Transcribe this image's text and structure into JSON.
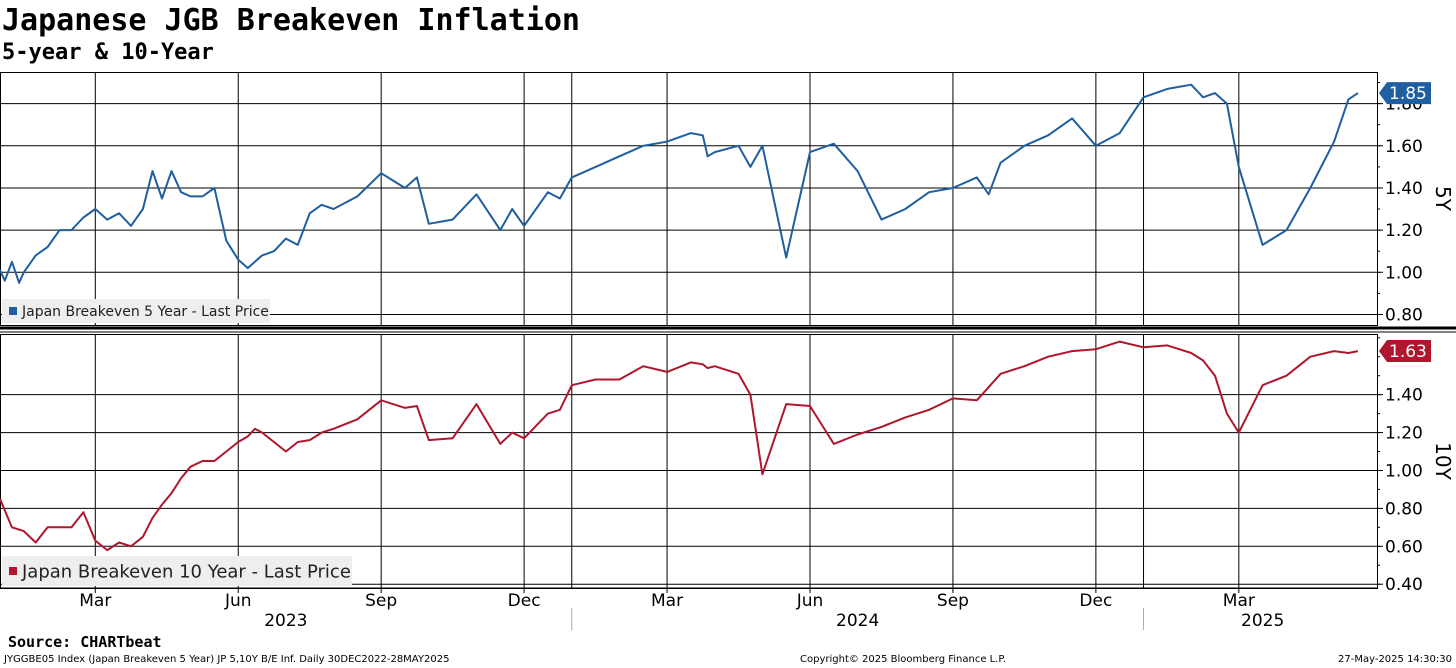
{
  "title": "Japanese JGB Breakeven Inflation",
  "subtitle": "5-year & 10-Year",
  "source": "Source: CHARTbeat",
  "footer": {
    "left": "JYGGBE05 Index (Japan Breakeven 5 Year) JP 5,10Y B/E Inf.  Daily 30DEC2022-28MAY2025",
    "center": "Copyright© 2025 Bloomberg Finance L.P.",
    "right": "27-May-2025 14:30:30"
  },
  "colors": {
    "five_year": "#1f5fa0",
    "ten_year": "#b0172e"
  },
  "chart_data": [
    {
      "type": "line",
      "panel": "top",
      "axis_label": "5Y",
      "series_name": "Japan Breakeven 5 Year - Last Price",
      "last_value_label": "1.85",
      "last_value": 1.85,
      "ylim": [
        0.75,
        1.95
      ],
      "yticks": [
        0.8,
        1.0,
        1.2,
        1.4,
        1.6,
        1.8
      ],
      "ytick_labels": [
        "0.80",
        "1.00",
        "1.20",
        "1.40",
        "1.60",
        "1.80"
      ],
      "x": [
        0,
        0.1,
        0.25,
        0.4,
        0.5,
        0.75,
        1.0,
        1.25,
        1.5,
        1.75,
        2.0,
        2.25,
        2.5,
        2.75,
        3.0,
        3.2,
        3.4,
        3.6,
        3.8,
        4.0,
        4.25,
        4.5,
        4.75,
        5.0,
        5.2,
        5.35,
        5.5,
        5.75,
        6.0,
        6.25,
        6.5,
        6.75,
        7.0,
        7.5,
        8.0,
        8.5,
        8.75,
        9.0,
        9.5,
        10.0,
        10.5,
        10.75,
        11.0,
        11.5,
        11.75,
        12.0,
        12.5,
        13.0,
        13.5,
        14.0,
        14.5,
        14.75,
        14.85,
        15.0,
        15.5,
        15.75,
        16.0,
        16.5,
        17.0,
        17.5,
        18.0,
        18.5,
        19.0,
        19.5,
        20.0,
        20.5,
        20.75,
        21.0,
        21.5,
        22.0,
        22.5,
        23.0,
        23.5,
        24.0,
        24.5,
        25.0,
        25.25,
        25.5,
        25.75,
        26.0,
        26.5,
        27.0,
        27.5,
        28.0,
        28.3,
        28.5
      ],
      "values": [
        1.01,
        0.96,
        1.05,
        0.95,
        1.0,
        1.08,
        1.12,
        1.2,
        1.2,
        1.26,
        1.3,
        1.25,
        1.28,
        1.22,
        1.3,
        1.48,
        1.35,
        1.48,
        1.38,
        1.36,
        1.36,
        1.4,
        1.15,
        1.06,
        1.02,
        1.05,
        1.08,
        1.1,
        1.16,
        1.13,
        1.28,
        1.32,
        1.3,
        1.36,
        1.47,
        1.4,
        1.45,
        1.23,
        1.25,
        1.37,
        1.2,
        1.3,
        1.22,
        1.38,
        1.35,
        1.45,
        1.5,
        1.55,
        1.6,
        1.62,
        1.66,
        1.65,
        1.55,
        1.57,
        1.6,
        1.5,
        1.6,
        1.07,
        1.57,
        1.61,
        1.48,
        1.25,
        1.3,
        1.38,
        1.4,
        1.45,
        1.37,
        1.52,
        1.6,
        1.65,
        1.73,
        1.6,
        1.66,
        1.83,
        1.87,
        1.89,
        1.83,
        1.85,
        1.8,
        1.5,
        1.13,
        1.2,
        1.4,
        1.62,
        1.82,
        1.85
      ]
    },
    {
      "type": "line",
      "panel": "bottom",
      "axis_label": "10Y",
      "series_name": "Japan Breakeven 10 Year - Last Price",
      "last_value_label": "1.63",
      "last_value": 1.63,
      "ylim": [
        0.38,
        1.72
      ],
      "yticks": [
        0.4,
        0.6,
        0.8,
        1.0,
        1.2,
        1.4
      ],
      "ytick_labels": [
        "0.40",
        "0.60",
        "0.80",
        "1.00",
        "1.20",
        "1.40"
      ],
      "x": [
        0,
        0.25,
        0.5,
        0.75,
        1.0,
        1.25,
        1.5,
        1.75,
        2.0,
        2.25,
        2.5,
        2.75,
        3.0,
        3.2,
        3.4,
        3.6,
        3.8,
        4.0,
        4.25,
        4.5,
        4.75,
        5.0,
        5.2,
        5.35,
        5.5,
        5.75,
        6.0,
        6.25,
        6.5,
        6.75,
        7.0,
        7.5,
        8.0,
        8.5,
        8.75,
        9.0,
        9.5,
        10.0,
        10.5,
        10.75,
        11.0,
        11.5,
        11.75,
        12.0,
        12.5,
        13.0,
        13.5,
        14.0,
        14.5,
        14.75,
        14.85,
        15.0,
        15.5,
        15.75,
        16.0,
        16.5,
        17.0,
        17.5,
        18.0,
        18.5,
        19.0,
        19.5,
        20.0,
        20.5,
        20.75,
        21.0,
        21.5,
        22.0,
        22.5,
        23.0,
        23.5,
        24.0,
        24.5,
        25.0,
        25.25,
        25.5,
        25.75,
        26.0,
        26.5,
        27.0,
        27.5,
        28.0,
        28.3,
        28.5
      ],
      "values": [
        0.85,
        0.7,
        0.68,
        0.62,
        0.7,
        0.7,
        0.7,
        0.78,
        0.63,
        0.58,
        0.62,
        0.6,
        0.65,
        0.75,
        0.82,
        0.88,
        0.96,
        1.02,
        1.05,
        1.05,
        1.1,
        1.15,
        1.18,
        1.22,
        1.2,
        1.15,
        1.1,
        1.15,
        1.16,
        1.2,
        1.22,
        1.27,
        1.37,
        1.33,
        1.34,
        1.16,
        1.17,
        1.35,
        1.14,
        1.2,
        1.17,
        1.3,
        1.32,
        1.45,
        1.48,
        1.48,
        1.55,
        1.52,
        1.57,
        1.56,
        1.54,
        1.55,
        1.51,
        1.4,
        0.98,
        1.35,
        1.34,
        1.14,
        1.19,
        1.23,
        1.28,
        1.32,
        1.38,
        1.37,
        1.44,
        1.51,
        1.55,
        1.6,
        1.63,
        1.64,
        1.68,
        1.65,
        1.66,
        1.62,
        1.58,
        1.5,
        1.3,
        1.2,
        1.45,
        1.5,
        1.6,
        1.63,
        1.62,
        1.63
      ]
    }
  ],
  "x_axis": {
    "month_labels": [
      "Mar",
      "Jun",
      "Sep",
      "Dec",
      "Mar",
      "Jun",
      "Sep",
      "Dec",
      "Mar"
    ],
    "month_positions": [
      2,
      5,
      8,
      11,
      14,
      17,
      20,
      23,
      26
    ],
    "year_labels": [
      "2023",
      "2024",
      "2025"
    ],
    "year_positions": [
      6,
      18,
      26.5
    ],
    "year_dividers": [
      12,
      24
    ],
    "range": [
      0,
      28.9
    ]
  }
}
